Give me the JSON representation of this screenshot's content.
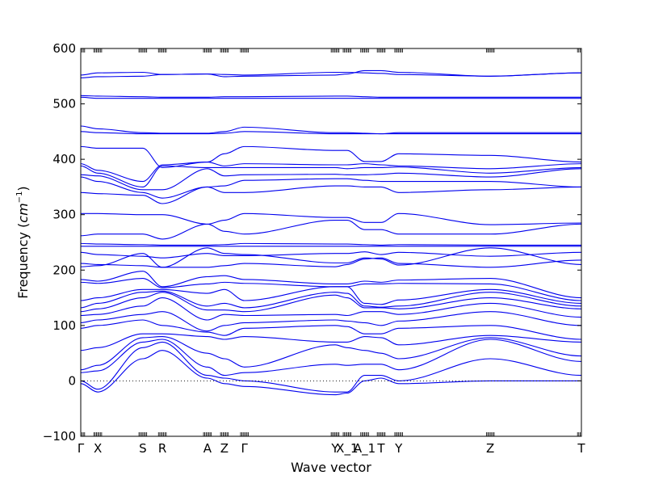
{
  "chart_data": {
    "type": "line",
    "xlabel": "Wave vector",
    "ylabel": "Frequency (",
    "ylabel_math": "cm",
    "ylabel_sup": "−1",
    "ylabel_close": ")",
    "ylim": [
      -100,
      600
    ],
    "yticks": [
      -100,
      0,
      100,
      200,
      300,
      400,
      500,
      600
    ],
    "xlim": [
      0,
      1
    ],
    "grid": false,
    "series_color": "#0000ee",
    "zero_line": {
      "y": 0,
      "style": "dotted",
      "color": "#000000"
    },
    "high_symmetry_points": [
      {
        "label": "Γ",
        "x": 0.0
      },
      {
        "label": "X",
        "x": 0.034
      },
      {
        "label": "S",
        "x": 0.124
      },
      {
        "label": "R",
        "x": 0.163
      },
      {
        "label": "A",
        "x": 0.253
      },
      {
        "label": "Z",
        "x": 0.287
      },
      {
        "label": "Γ",
        "x": 0.327
      },
      {
        "label": "Y",
        "x": 0.508
      },
      {
        "label": "X_1",
        "x": 0.532
      },
      {
        "label": "A_1",
        "x": 0.567
      },
      {
        "label": "T",
        "x": 0.6
      },
      {
        "label": "Y",
        "x": 0.635
      },
      {
        "label": "Z",
        "x": 0.818
      },
      {
        "label": "T",
        "x": 1.0
      }
    ],
    "series": [
      {
        "values": [
          552,
          556,
          557,
          553,
          554,
          553,
          552,
          557,
          557,
          556,
          555,
          553,
          550,
          556
        ]
      },
      {
        "values": [
          547,
          549,
          550,
          553,
          554,
          549,
          550,
          552,
          554,
          560,
          560,
          557,
          550,
          556
        ]
      },
      {
        "values": [
          515,
          514,
          513,
          512,
          512,
          513,
          513,
          514,
          514,
          513,
          512,
          512,
          512,
          512
        ]
      },
      {
        "values": [
          512,
          510,
          510,
          510,
          510,
          510,
          510,
          510,
          510,
          510,
          510,
          510,
          510,
          510
        ]
      },
      {
        "values": [
          460,
          455,
          448,
          447,
          447,
          450,
          458,
          448,
          448,
          447,
          446,
          448,
          448,
          448
        ]
      },
      {
        "values": [
          450,
          448,
          446,
          446,
          446,
          447,
          450,
          446,
          446,
          446,
          446,
          446,
          446,
          446
        ]
      },
      {
        "values": [
          423,
          420,
          420,
          385,
          395,
          410,
          423,
          416,
          416,
          396,
          396,
          410,
          407,
          395
        ]
      },
      {
        "values": [
          392,
          380,
          360,
          390,
          395,
          388,
          392,
          390,
          390,
          392,
          390,
          388,
          383,
          392
        ]
      },
      {
        "values": [
          388,
          375,
          350,
          388,
          385,
          385,
          385,
          385,
          383,
          385,
          385,
          386,
          375,
          385
        ]
      },
      {
        "values": [
          372,
          370,
          345,
          345,
          383,
          370,
          372,
          373,
          372,
          372,
          373,
          375,
          368,
          383
        ]
      },
      {
        "values": [
          368,
          360,
          340,
          330,
          350,
          352,
          362,
          365,
          365,
          362,
          360,
          360,
          360,
          350
        ]
      },
      {
        "values": [
          340,
          338,
          335,
          320,
          350,
          340,
          340,
          352,
          352,
          350,
          350,
          340,
          345,
          350
        ]
      },
      {
        "values": [
          302,
          302,
          300,
          300,
          283,
          290,
          302,
          295,
          295,
          286,
          286,
          302,
          282,
          285
        ]
      },
      {
        "values": [
          262,
          265,
          265,
          256,
          283,
          270,
          265,
          290,
          290,
          273,
          273,
          265,
          265,
          283
        ]
      },
      {
        "values": [
          248,
          247,
          246,
          245,
          245,
          246,
          248,
          247,
          247,
          246,
          245,
          246,
          245,
          245
        ]
      },
      {
        "values": [
          243,
          243,
          243,
          243,
          243,
          243,
          243,
          243,
          243,
          243,
          243,
          243,
          243,
          243
        ]
      },
      {
        "values": [
          232,
          228,
          225,
          222,
          230,
          226,
          226,
          230,
          230,
          233,
          228,
          232,
          225,
          232
        ]
      },
      {
        "values": [
          212,
          210,
          208,
          205,
          205,
          208,
          212,
          206,
          210,
          220,
          222,
          212,
          205,
          218
        ]
      },
      {
        "values": [
          206,
          208,
          230,
          205,
          240,
          230,
          228,
          213,
          213,
          222,
          220,
          209,
          240,
          210
        ]
      },
      {
        "values": [
          183,
          180,
          198,
          170,
          188,
          190,
          183,
          175,
          175,
          180,
          178,
          182,
          185,
          150
        ]
      },
      {
        "values": [
          178,
          176,
          185,
          168,
          175,
          178,
          176,
          170,
          170,
          175,
          175,
          176,
          175,
          145
        ]
      },
      {
        "values": [
          145,
          150,
          165,
          165,
          158,
          165,
          145,
          170,
          170,
          140,
          138,
          146,
          165,
          140
        ]
      },
      {
        "values": [
          132,
          140,
          160,
          162,
          135,
          140,
          132,
          160,
          158,
          135,
          133,
          135,
          160,
          135
        ]
      },
      {
        "values": [
          125,
          130,
          150,
          160,
          128,
          128,
          125,
          155,
          150,
          132,
          132,
          130,
          150,
          130
        ]
      },
      {
        "values": [
          118,
          120,
          135,
          150,
          110,
          120,
          118,
          120,
          118,
          125,
          125,
          120,
          140,
          115
        ]
      },
      {
        "values": [
          105,
          110,
          120,
          125,
          90,
          100,
          105,
          110,
          108,
          105,
          100,
          108,
          125,
          100
        ]
      },
      {
        "values": [
          95,
          100,
          110,
          100,
          88,
          82,
          95,
          100,
          98,
          85,
          85,
          95,
          100,
          75
        ]
      },
      {
        "values": [
          55,
          60,
          85,
          85,
          80,
          75,
          80,
          70,
          70,
          80,
          78,
          65,
          82,
          70
        ]
      },
      {
        "values": [
          20,
          28,
          78,
          80,
          50,
          40,
          25,
          65,
          60,
          55,
          50,
          40,
          78,
          45
        ]
      },
      {
        "values": [
          15,
          18,
          70,
          75,
          25,
          10,
          15,
          30,
          28,
          30,
          30,
          20,
          75,
          35
        ]
      },
      {
        "values": [
          0,
          -15,
          60,
          70,
          10,
          5,
          0,
          -20,
          -20,
          10,
          10,
          0,
          40,
          10
        ]
      },
      {
        "values": [
          -5,
          -20,
          40,
          55,
          5,
          -5,
          -10,
          -25,
          -22,
          0,
          5,
          -5,
          0,
          0
        ]
      }
    ]
  }
}
